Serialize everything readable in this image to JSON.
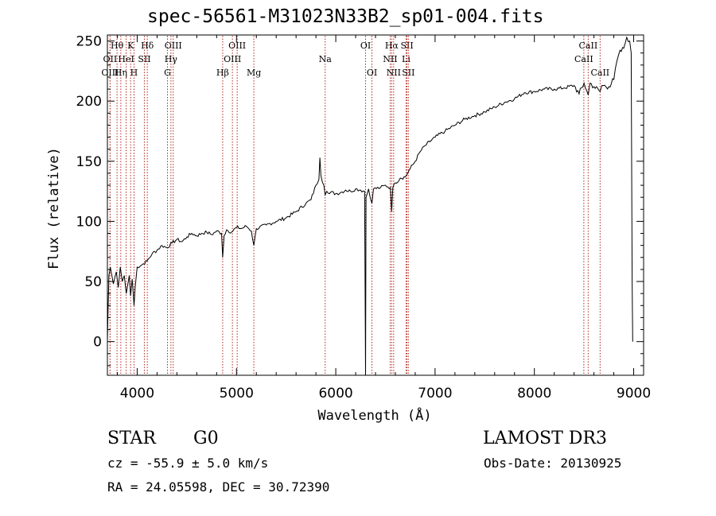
{
  "chart_data": {
    "type": "line",
    "title": "spec-56561-M31023N33B2_sp01-004.fits",
    "xlabel": "Wavelength (Å)",
    "ylabel": "Flux (relative)",
    "xlim": [
      3700,
      9100
    ],
    "ylim": [
      -28,
      255
    ],
    "x_ticks": [
      4000,
      5000,
      6000,
      7000,
      8000,
      9000
    ],
    "x_tick_labels": [
      "4000",
      "5000",
      "6000",
      "7000",
      "8000",
      "9000"
    ],
    "y_ticks": [
      0,
      50,
      100,
      150,
      200,
      250
    ],
    "y_tick_labels": [
      "0",
      "50",
      "100",
      "150",
      "200",
      "250"
    ],
    "grid": false,
    "series": [
      {
        "name": "spectrum",
        "points": [
          [
            3700,
            0
          ],
          [
            3705,
            20
          ],
          [
            3715,
            55
          ],
          [
            3730,
            62
          ],
          [
            3760,
            48
          ],
          [
            3790,
            58
          ],
          [
            3810,
            45
          ],
          [
            3830,
            62
          ],
          [
            3850,
            50
          ],
          [
            3870,
            55
          ],
          [
            3890,
            40
          ],
          [
            3900,
            45
          ],
          [
            3920,
            55
          ],
          [
            3933,
            38
          ],
          [
            3950,
            52
          ],
          [
            3968,
            30
          ],
          [
            3980,
            45
          ],
          [
            4000,
            62
          ],
          [
            4050,
            64
          ],
          [
            4100,
            67
          ],
          [
            4150,
            73
          ],
          [
            4200,
            76
          ],
          [
            4250,
            80
          ],
          [
            4300,
            78
          ],
          [
            4350,
            82
          ],
          [
            4400,
            85
          ],
          [
            4450,
            83
          ],
          [
            4500,
            87
          ],
          [
            4550,
            90
          ],
          [
            4600,
            88
          ],
          [
            4650,
            90
          ],
          [
            4700,
            91
          ],
          [
            4750,
            89
          ],
          [
            4800,
            92
          ],
          [
            4850,
            90
          ],
          [
            4861,
            70
          ],
          [
            4875,
            88
          ],
          [
            4900,
            93
          ],
          [
            4950,
            91
          ],
          [
            5000,
            95
          ],
          [
            5050,
            94
          ],
          [
            5100,
            96
          ],
          [
            5150,
            92
          ],
          [
            5175,
            80
          ],
          [
            5200,
            94
          ],
          [
            5300,
            97
          ],
          [
            5400,
            100
          ],
          [
            5500,
            103
          ],
          [
            5600,
            108
          ],
          [
            5700,
            115
          ],
          [
            5750,
            118
          ],
          [
            5800,
            130
          ],
          [
            5830,
            135
          ],
          [
            5840,
            153
          ],
          [
            5850,
            138
          ],
          [
            5880,
            130
          ],
          [
            5893,
            122
          ],
          [
            5910,
            125
          ],
          [
            6000,
            123
          ],
          [
            6050,
            124
          ],
          [
            6100,
            126
          ],
          [
            6150,
            125
          ],
          [
            6200,
            127
          ],
          [
            6250,
            126
          ],
          [
            6290,
            125
          ],
          [
            6300,
            -28
          ],
          [
            6305,
            120
          ],
          [
            6330,
            127
          ],
          [
            6364,
            115
          ],
          [
            6380,
            127
          ],
          [
            6450,
            128
          ],
          [
            6500,
            130
          ],
          [
            6550,
            128
          ],
          [
            6563,
            108
          ],
          [
            6575,
            128
          ],
          [
            6600,
            132
          ],
          [
            6650,
            136
          ],
          [
            6700,
            137
          ],
          [
            6750,
            144
          ],
          [
            6800,
            150
          ],
          [
            6850,
            158
          ],
          [
            6900,
            163
          ],
          [
            7000,
            170
          ],
          [
            7100,
            175
          ],
          [
            7200,
            180
          ],
          [
            7300,
            185
          ],
          [
            7400,
            188
          ],
          [
            7500,
            191
          ],
          [
            7600,
            195
          ],
          [
            7700,
            199
          ],
          [
            7800,
            202
          ],
          [
            7900,
            207
          ],
          [
            8000,
            208
          ],
          [
            8100,
            210
          ],
          [
            8200,
            210
          ],
          [
            8300,
            211
          ],
          [
            8400,
            213
          ],
          [
            8450,
            206
          ],
          [
            8500,
            215
          ],
          [
            8542,
            205
          ],
          [
            8560,
            215
          ],
          [
            8600,
            212
          ],
          [
            8662,
            208
          ],
          [
            8680,
            213
          ],
          [
            8750,
            212
          ],
          [
            8800,
            218
          ],
          [
            8830,
            233
          ],
          [
            8850,
            239
          ],
          [
            8900,
            244
          ],
          [
            8930,
            253
          ],
          [
            8960,
            250
          ],
          [
            8975,
            240
          ],
          [
            8985,
            50
          ],
          [
            8990,
            0
          ]
        ]
      }
    ],
    "line_markers": [
      {
        "name": "Hθ",
        "wavelength": 3797,
        "row": 0
      },
      {
        "name": "K",
        "wavelength": 3934,
        "row": 0
      },
      {
        "name": "Hδ",
        "wavelength": 4102,
        "row": 0
      },
      {
        "name": "OIII",
        "wavelength": 4363,
        "row": 0
      },
      {
        "name": "OIII",
        "wavelength": 5007,
        "row": 0
      },
      {
        "name": "OI",
        "wavelength": 6300,
        "row": 0
      },
      {
        "name": "Hα",
        "wavelength": 6563,
        "row": 0
      },
      {
        "name": "SII",
        "wavelength": 6717,
        "row": 0
      },
      {
        "name": "CaII",
        "wavelength": 8542,
        "row": 0
      },
      {
        "name": "OII",
        "wavelength": 3727,
        "row": 1
      },
      {
        "name": "HeI",
        "wavelength": 3889,
        "row": 1
      },
      {
        "name": "SII",
        "wavelength": 4072,
        "row": 1
      },
      {
        "name": "Hγ",
        "wavelength": 4340,
        "row": 1
      },
      {
        "name": "OIII",
        "wavelength": 4959,
        "row": 1
      },
      {
        "name": "Na",
        "wavelength": 5893,
        "row": 1
      },
      {
        "name": "NII",
        "wavelength": 6548,
        "row": 1
      },
      {
        "name": "Li",
        "wavelength": 6708,
        "row": 1
      },
      {
        "name": "CaII",
        "wavelength": 8498,
        "row": 1
      },
      {
        "name": "OIII",
        "wavelength": 3727,
        "row": 2
      },
      {
        "name": "Hη",
        "wavelength": 3835,
        "row": 2
      },
      {
        "name": "H",
        "wavelength": 3968,
        "row": 2
      },
      {
        "name": "G",
        "wavelength": 4305,
        "row": 2
      },
      {
        "name": "Hβ",
        "wavelength": 4861,
        "row": 2
      },
      {
        "name": "Mg",
        "wavelength": 5175,
        "row": 2
      },
      {
        "name": "OI",
        "wavelength": 6364,
        "row": 2
      },
      {
        "name": "NII",
        "wavelength": 6583,
        "row": 2
      },
      {
        "name": "SII",
        "wavelength": 6731,
        "row": 2
      },
      {
        "name": "CaII",
        "wavelength": 8662,
        "row": 2
      }
    ]
  },
  "info": {
    "object_class": "STAR",
    "subclass": "G0",
    "survey": "LAMOST DR3",
    "cz": "cz = -55.9 ± 5.0 km/s",
    "obs_date": "Obs-Date: 20130925",
    "coords": "RA =  24.05598, DEC =  30.72390"
  },
  "colors": {
    "line_marker": "#b0281e",
    "spectrum": "#000000",
    "axes": "#000000"
  }
}
